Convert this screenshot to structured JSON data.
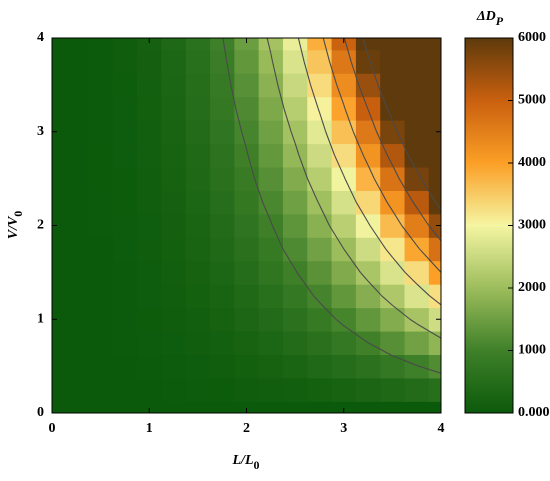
{
  "chart_data": {
    "type": "contour",
    "colorbar_title": "ΔD",
    "colorbar_title_sub": "P",
    "x_label": "L/L",
    "x_label_sub": "0",
    "y_label": "V/V",
    "y_label_sub": "0",
    "x": [
      0,
      0.25,
      0.5,
      0.75,
      1,
      1.25,
      1.5,
      1.75,
      2,
      2.25,
      2.5,
      2.75,
      3,
      3.25,
      3.5,
      3.75,
      4
    ],
    "y": [
      0,
      0.25,
      0.5,
      0.75,
      1,
      1.25,
      1.5,
      1.75,
      2,
      2.25,
      2.5,
      2.75,
      3,
      3.25,
      3.5,
      3.75,
      4
    ],
    "z": [
      [
        0,
        0,
        0,
        0,
        0,
        0,
        0,
        0,
        0,
        0,
        0,
        0,
        0,
        0,
        0,
        0,
        0
      ],
      [
        0,
        0,
        1,
        4,
        9,
        17,
        29,
        47,
        70,
        99,
        136,
        181,
        235,
        299,
        373,
        459,
        557
      ],
      [
        0,
        0,
        2,
        8,
        19,
        36,
        63,
        100,
        149,
        213,
        292,
        388,
        504,
        641,
        800,
        984,
        1194
      ],
      [
        0,
        0,
        4,
        12,
        29,
        57,
        98,
        156,
        233,
        332,
        456,
        606,
        787,
        1001,
        1250,
        1537,
        1866
      ],
      [
        0,
        1,
        5,
        17,
        40,
        78,
        135,
        214,
        320,
        456,
        625,
        832,
        1080,
        1373,
        1715,
        2109,
        2560
      ],
      [
        0,
        1,
        6,
        22,
        51,
        100,
        173,
        274,
        409,
        582,
        799,
        1063,
        1380,
        1755,
        2192,
        2696,
        3272
      ],
      [
        0,
        1,
        8,
        26,
        62,
        122,
        211,
        335,
        500,
        712,
        976,
        1299,
        1687,
        2145,
        2679,
        3295,
        3999
      ],
      [
        0,
        1,
        9,
        31,
        74,
        145,
        250,
        397,
        592,
        843,
        1157,
        1540,
        1999,
        2541,
        3174,
        3904,
        4738
      ],
      [
        0,
        1,
        11,
        36,
        86,
        167,
        289,
        460,
        686,
        977,
        1340,
        1783,
        2315,
        2943,
        3676,
        4521,
        5487
      ],
      [
        0,
        2,
        12,
        41,
        98,
        191,
        329,
        523,
        781,
        1112,
        1525,
        2030,
        2635,
        3351,
        4185,
        5147,
        6247
      ],
      [
        0,
        2,
        14,
        46,
        110,
        214,
        370,
        587,
        877,
        1248,
        1712,
        2279,
        2959,
        3762,
        4699,
        5779,
        7014
      ],
      [
        0,
        2,
        15,
        51,
        122,
        238,
        411,
        652,
        974,
        1386,
        1902,
        2531,
        3286,
        4178,
        5218,
        6418,
        7790
      ],
      [
        0,
        2,
        17,
        57,
        134,
        262,
        452,
        718,
        1071,
        1526,
        2093,
        2785,
        3616,
        4598,
        5742,
        7063,
        8572
      ],
      [
        0,
        2,
        18,
        62,
        146,
        286,
        494,
        784,
        1170,
        1666,
        2285,
        3042,
        3949,
        5021,
        6271,
        7713,
        9361
      ],
      [
        0,
        2,
        20,
        67,
        159,
        310,
        536,
        850,
        1269,
        1807,
        2479,
        3300,
        4284,
        5447,
        6803,
        8368,
        10156
      ],
      [
        0,
        3,
        21,
        72,
        171,
        334,
        578,
        917,
        1370,
        1950,
        2675,
        3560,
        4622,
        5877,
        7340,
        9028,
        10957
      ],
      [
        0,
        3,
        23,
        78,
        184,
        359,
        620,
        985,
        1470,
        2094,
        2872,
        3822,
        4962,
        6309,
        7880,
        9692,
        11763
      ]
    ],
    "xlim": [
      0,
      4
    ],
    "xticks": [
      0,
      1,
      2,
      3,
      4
    ],
    "ylim": [
      0,
      4
    ],
    "yticks": [
      0,
      1,
      2,
      3,
      4
    ],
    "zlim": [
      0,
      6000
    ],
    "zticks": [
      {
        "value": 0,
        "label": "0.000"
      },
      1000,
      2000,
      3000,
      4000,
      5000,
      6000
    ],
    "colormap": [
      "#0b5a0b",
      "#3f8029",
      "#9dbd5c",
      "#f5f5a2",
      "#fb9f26",
      "#c9600f",
      "#5e3a0c"
    ],
    "contour_levels": [
      1000,
      2000,
      3000,
      4000,
      5000,
      6000
    ],
    "contour_color": "#4a4a4a"
  }
}
